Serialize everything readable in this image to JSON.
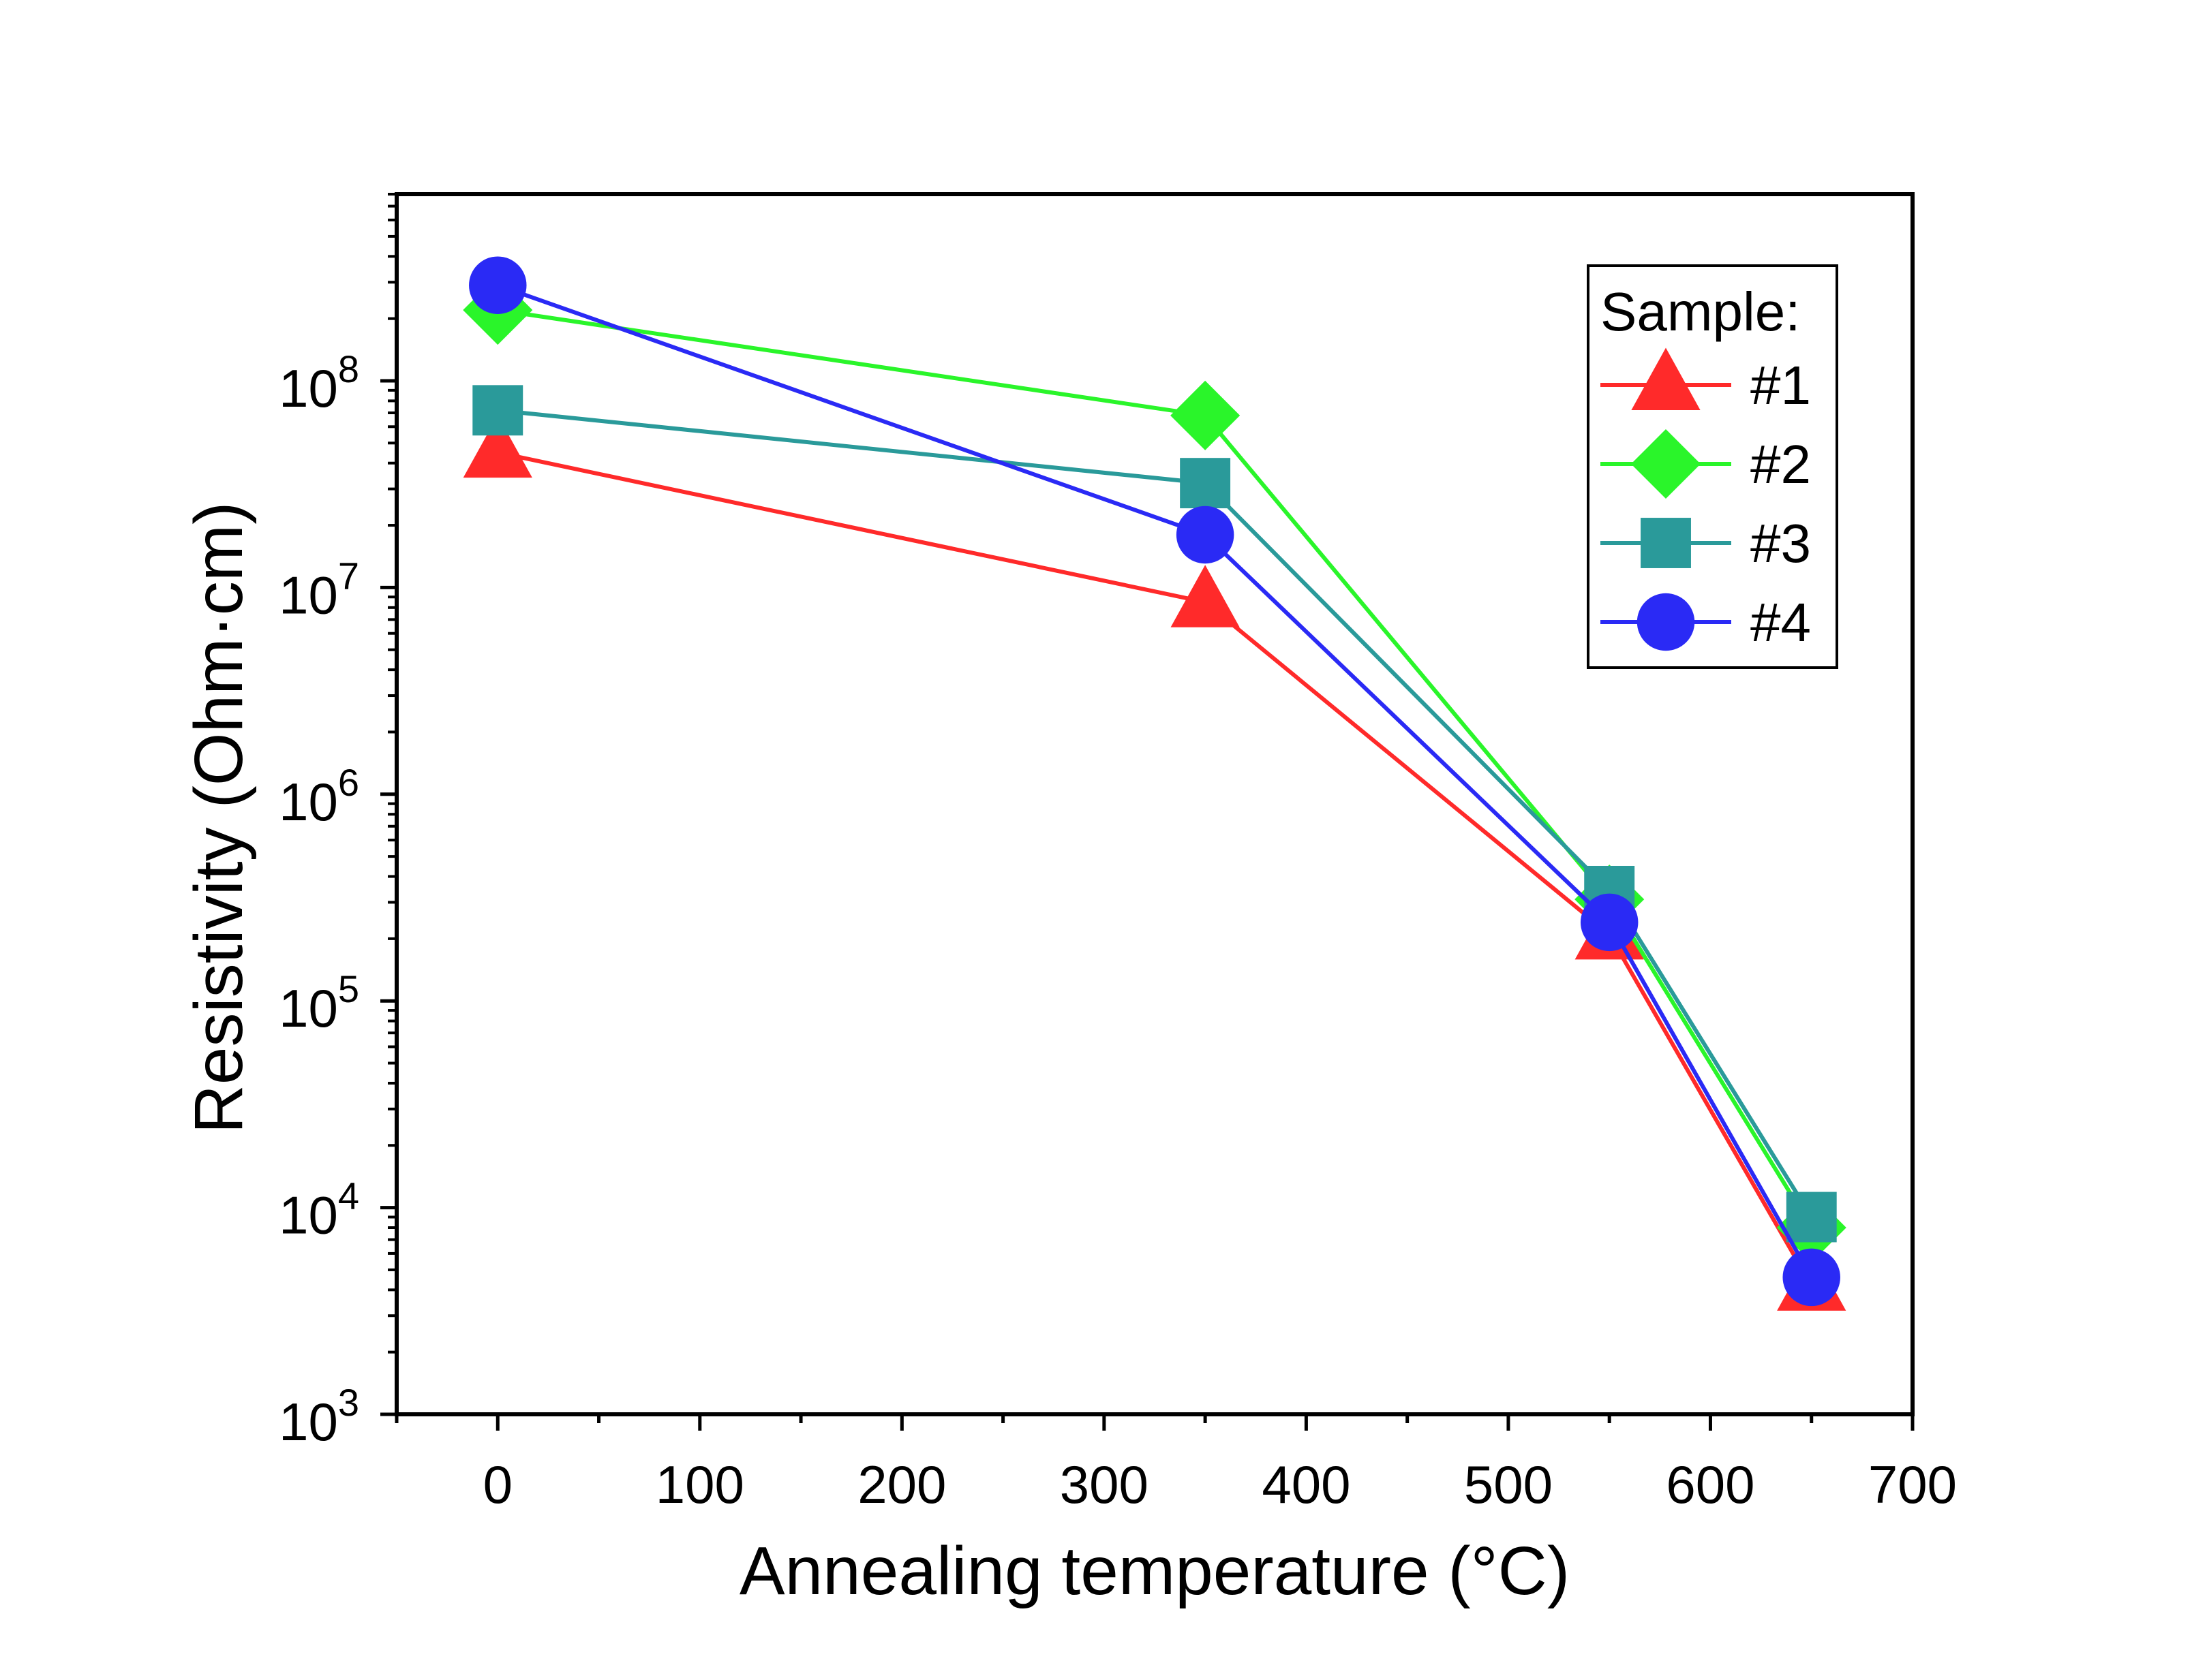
{
  "chart_data": {
    "type": "line",
    "xlabel": "Annealing temperature (°C)",
    "ylabel": "Resistivity (Ohm·cm)",
    "xlim": [
      -50,
      700
    ],
    "ylim": [
      1000,
      800000000
    ],
    "y_scale": "log",
    "grid": false,
    "x_ticks": [
      0,
      100,
      200,
      300,
      400,
      500,
      600,
      700
    ],
    "x_tick_labels": [
      "0",
      "100",
      "200",
      "300",
      "400",
      "500",
      "600",
      "700"
    ],
    "y_ticks": [
      1000,
      10000,
      100000,
      1000000,
      10000000,
      100000000
    ],
    "y_tick_labels": [
      {
        "base": "10",
        "exp": "3"
      },
      {
        "base": "10",
        "exp": "4"
      },
      {
        "base": "10",
        "exp": "5"
      },
      {
        "base": "10",
        "exp": "6"
      },
      {
        "base": "10",
        "exp": "7"
      },
      {
        "base": "10",
        "exp": "8"
      }
    ],
    "legend": {
      "title": "Sample:",
      "placement": "top-right"
    },
    "x": [
      0,
      350,
      550,
      650
    ],
    "series": [
      {
        "name": "#1",
        "color": "#ff2a2a",
        "marker": "triangle",
        "values": [
          45000000,
          8500000,
          210000,
          4200
        ]
      },
      {
        "name": "#2",
        "color": "#2af52a",
        "marker": "diamond",
        "values": [
          220000000,
          68000000,
          310000,
          8000
        ]
      },
      {
        "name": "#3",
        "color": "#2a9a9a",
        "marker": "square",
        "values": [
          72000000,
          32000000,
          340000,
          9000
        ]
      },
      {
        "name": "#4",
        "color": "#2a2af5",
        "marker": "circle",
        "values": [
          290000000,
          18000000,
          240000,
          4600
        ]
      }
    ]
  }
}
